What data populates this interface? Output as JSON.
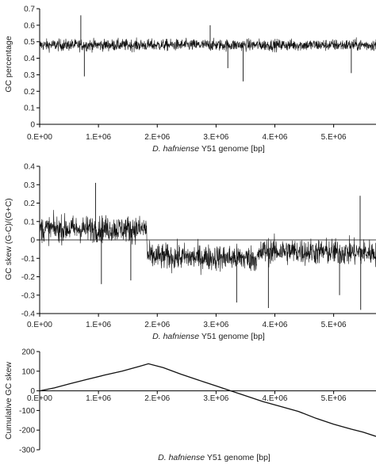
{
  "chart_data": [
    {
      "type": "line",
      "title": "",
      "xlabel": {
        "species": "D. hafniense",
        "rest": " Y51 genome [bp]"
      },
      "ylabel": "GC percentage",
      "xlim": [
        0,
        5720000
      ],
      "ylim": [
        0,
        0.7
      ],
      "x_ticks": [
        "0.E+00",
        "1.E+06",
        "2.E+06",
        "3.E+06",
        "4.E+06",
        "5.E+06"
      ],
      "x_tick_values": [
        0,
        1000000,
        2000000,
        3000000,
        4000000,
        5000000
      ],
      "y_ticks": [
        "0",
        "0.1",
        "0.2",
        "0.3",
        "0.4",
        "0.5",
        "0.6",
        "0.7"
      ],
      "y_tick_values": [
        0,
        0.1,
        0.2,
        0.3,
        0.4,
        0.5,
        0.6,
        0.7
      ],
      "series": [
        {
          "style": "dense-noisy",
          "base": [
            [
              0,
              0.48
            ],
            [
              5720000,
              0.48
            ]
          ],
          "noise": 0.035,
          "spikes": [
            [
              700000,
              0.66
            ],
            [
              760000,
              0.29
            ],
            [
              2900000,
              0.6
            ],
            [
              3460000,
              0.26
            ],
            [
              3200000,
              0.34
            ],
            [
              5300000,
              0.31
            ]
          ]
        }
      ],
      "baseline": null
    },
    {
      "type": "line",
      "title": "",
      "xlabel": {
        "species": "D. hafniense",
        "rest": " Y51 genome [bp]"
      },
      "ylabel": "GC skew (G-C)/(G+C)",
      "xlim": [
        0,
        5720000
      ],
      "ylim": [
        -0.4,
        0.4
      ],
      "x_ticks": [
        "0.E+00",
        "1.E+06",
        "2.E+06",
        "3.E+06",
        "4.E+06",
        "5.E+06"
      ],
      "x_tick_values": [
        0,
        1000000,
        2000000,
        3000000,
        4000000,
        5000000
      ],
      "y_ticks": [
        "-0.4",
        "-0.3",
        "-0.2",
        "-0.1",
        "0",
        "0.1",
        "0.2",
        "0.3",
        "0.4"
      ],
      "y_tick_values": [
        -0.4,
        -0.3,
        -0.2,
        -0.1,
        0,
        0.1,
        0.2,
        0.3,
        0.4
      ],
      "series": [
        {
          "style": "dense-noisy",
          "base": [
            [
              0,
              0.06
            ],
            [
              1820000,
              0.06
            ],
            [
              1830000,
              -0.09
            ],
            [
              3700000,
              -0.1
            ],
            [
              3800000,
              -0.06
            ],
            [
              5720000,
              -0.07
            ]
          ],
          "noise": 0.07,
          "spikes": [
            [
              950000,
              0.31
            ],
            [
              1550000,
              -0.22
            ],
            [
              1050000,
              -0.24
            ],
            [
              3350000,
              -0.34
            ],
            [
              3890000,
              -0.37
            ],
            [
              5450000,
              0.24
            ],
            [
              5100000,
              -0.3
            ],
            [
              5460000,
              -0.38
            ]
          ]
        }
      ],
      "baseline": 0
    },
    {
      "type": "line",
      "title": "",
      "xlabel": {
        "species": "D. hafniense",
        "rest": " Y51 genome [bp]"
      },
      "ylabel": "Cumulative GC skew",
      "xlim": [
        0,
        5720000
      ],
      "ylim": [
        -300,
        200
      ],
      "x_ticks": [
        "0.E+00",
        "1.E+06",
        "2.E+06",
        "3.E+06",
        "4.E+06",
        "5.E+06"
      ],
      "x_tick_values": [
        0,
        1000000,
        2000000,
        3000000,
        4000000,
        5000000
      ],
      "y_ticks": [
        "-300",
        "-200",
        "-100",
        "0",
        "100",
        "200"
      ],
      "y_tick_values": [
        -300,
        -200,
        -100,
        0,
        100,
        200
      ],
      "series": [
        {
          "style": "smooth",
          "points": [
            [
              0,
              0
            ],
            [
              250000,
              15
            ],
            [
              500000,
              35
            ],
            [
              800000,
              58
            ],
            [
              1100000,
              80
            ],
            [
              1400000,
              100
            ],
            [
              1700000,
              125
            ],
            [
              1850000,
              138
            ],
            [
              2100000,
              118
            ],
            [
              2400000,
              85
            ],
            [
              2700000,
              55
            ],
            [
              3000000,
              25
            ],
            [
              3200000,
              5
            ],
            [
              3500000,
              -25
            ],
            [
              3800000,
              -55
            ],
            [
              4100000,
              -80
            ],
            [
              4400000,
              -105
            ],
            [
              4700000,
              -140
            ],
            [
              5000000,
              -170
            ],
            [
              5300000,
              -195
            ],
            [
              5500000,
              -210
            ],
            [
              5720000,
              -232
            ]
          ]
        }
      ],
      "baseline": 0
    }
  ]
}
